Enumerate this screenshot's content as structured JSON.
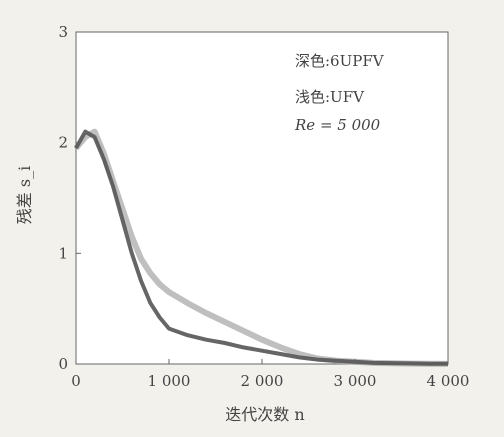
{
  "chart_data": {
    "type": "line",
    "xlabel": "迭代次数 n",
    "ylabel": "残差 s_i",
    "xlim": [
      0,
      4000
    ],
    "ylim": [
      0,
      3
    ],
    "x_ticks": [
      0,
      1000,
      2000,
      3000,
      4000
    ],
    "x_tick_labels": [
      "0",
      "1 000",
      "2 000",
      "3 000",
      "4 000"
    ],
    "y_ticks": [
      0,
      1,
      2,
      3
    ],
    "y_tick_labels": [
      "0",
      "1",
      "2",
      "3"
    ],
    "grid": false,
    "legend_position": "top-right",
    "annotations": [
      "深色:6UPFV",
      "浅色:UFV",
      "Re = 5 000"
    ],
    "series": [
      {
        "name": "6UPFV",
        "color": "#555555",
        "x": [
          0,
          100,
          200,
          300,
          400,
          500,
          600,
          700,
          800,
          900,
          1000,
          1200,
          1400,
          1600,
          1800,
          2000,
          2200,
          2400,
          2600,
          2800,
          3000,
          3200,
          3400,
          3600,
          3800,
          4000
        ],
        "y": [
          1.95,
          2.1,
          2.05,
          1.85,
          1.6,
          1.3,
          1.0,
          0.75,
          0.55,
          0.42,
          0.32,
          0.26,
          0.22,
          0.19,
          0.15,
          0.12,
          0.09,
          0.06,
          0.04,
          0.03,
          0.02,
          0.01,
          0.008,
          0.005,
          0.003,
          0.002
        ]
      },
      {
        "name": "UFV",
        "color": "#a9a9a9",
        "x": [
          0,
          100,
          200,
          300,
          400,
          500,
          600,
          700,
          800,
          900,
          1000,
          1200,
          1400,
          1600,
          1800,
          2000,
          2200,
          2400,
          2600,
          2800,
          3000,
          3200,
          3400,
          3600,
          3800,
          4000
        ],
        "y": [
          1.95,
          2.05,
          2.1,
          1.9,
          1.65,
          1.4,
          1.15,
          0.95,
          0.82,
          0.72,
          0.65,
          0.55,
          0.46,
          0.38,
          0.3,
          0.22,
          0.15,
          0.09,
          0.05,
          0.03,
          0.02,
          0.01,
          0.006,
          0.004,
          0.002,
          0.001
        ]
      }
    ]
  }
}
